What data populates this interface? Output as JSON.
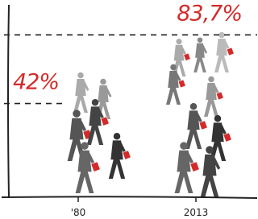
{
  "chart_data": {
    "type": "pictograph",
    "categories": [
      "'80",
      "2013"
    ],
    "values": [
      42,
      83.7
    ],
    "value_labels": [
      "42%",
      "83,7%"
    ],
    "color": "#d42a2a",
    "ylim": [
      -15,
      100
    ]
  }
}
